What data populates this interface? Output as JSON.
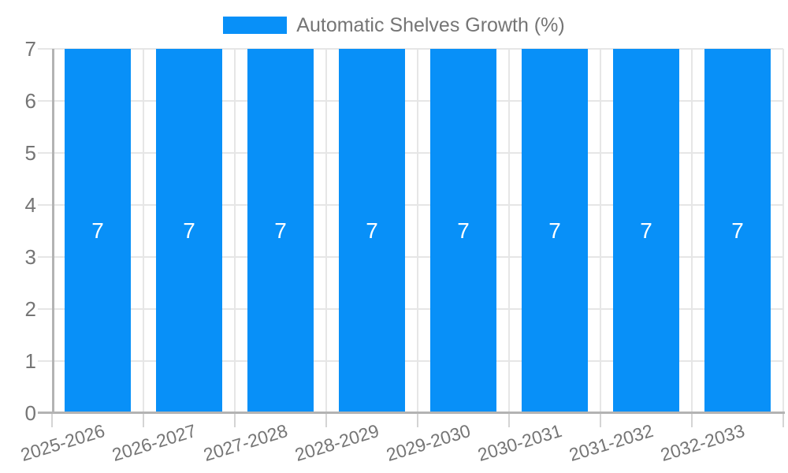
{
  "legend": {
    "label": "Automatic Shelves Growth (%)"
  },
  "chart_data": {
    "type": "bar",
    "title": "",
    "xlabel": "",
    "ylabel": "",
    "categories": [
      "2025-2026",
      "2026-2027",
      "2027-2028",
      "2028-2029",
      "2029-2030",
      "2030-2031",
      "2031-2032",
      "2032-2033"
    ],
    "series": [
      {
        "name": "Automatic Shelves Growth (%)",
        "values": [
          7,
          7,
          7,
          7,
          7,
          7,
          7,
          7
        ]
      }
    ],
    "value_labels": [
      "7",
      "7",
      "7",
      "7",
      "7",
      "7",
      "7",
      "7"
    ],
    "ylim": [
      0,
      7
    ],
    "yticks": [
      0,
      1,
      2,
      3,
      4,
      5,
      6,
      7
    ],
    "grid": true,
    "legend_position": "top",
    "colors": {
      "bar": "#0890f8",
      "value_label": "#ffffff",
      "gridline": "#e6e6e6",
      "axis_line": "#b3b3b3",
      "tick": "#d4d4d4",
      "text": "#757575",
      "background": "#ffffff"
    }
  }
}
